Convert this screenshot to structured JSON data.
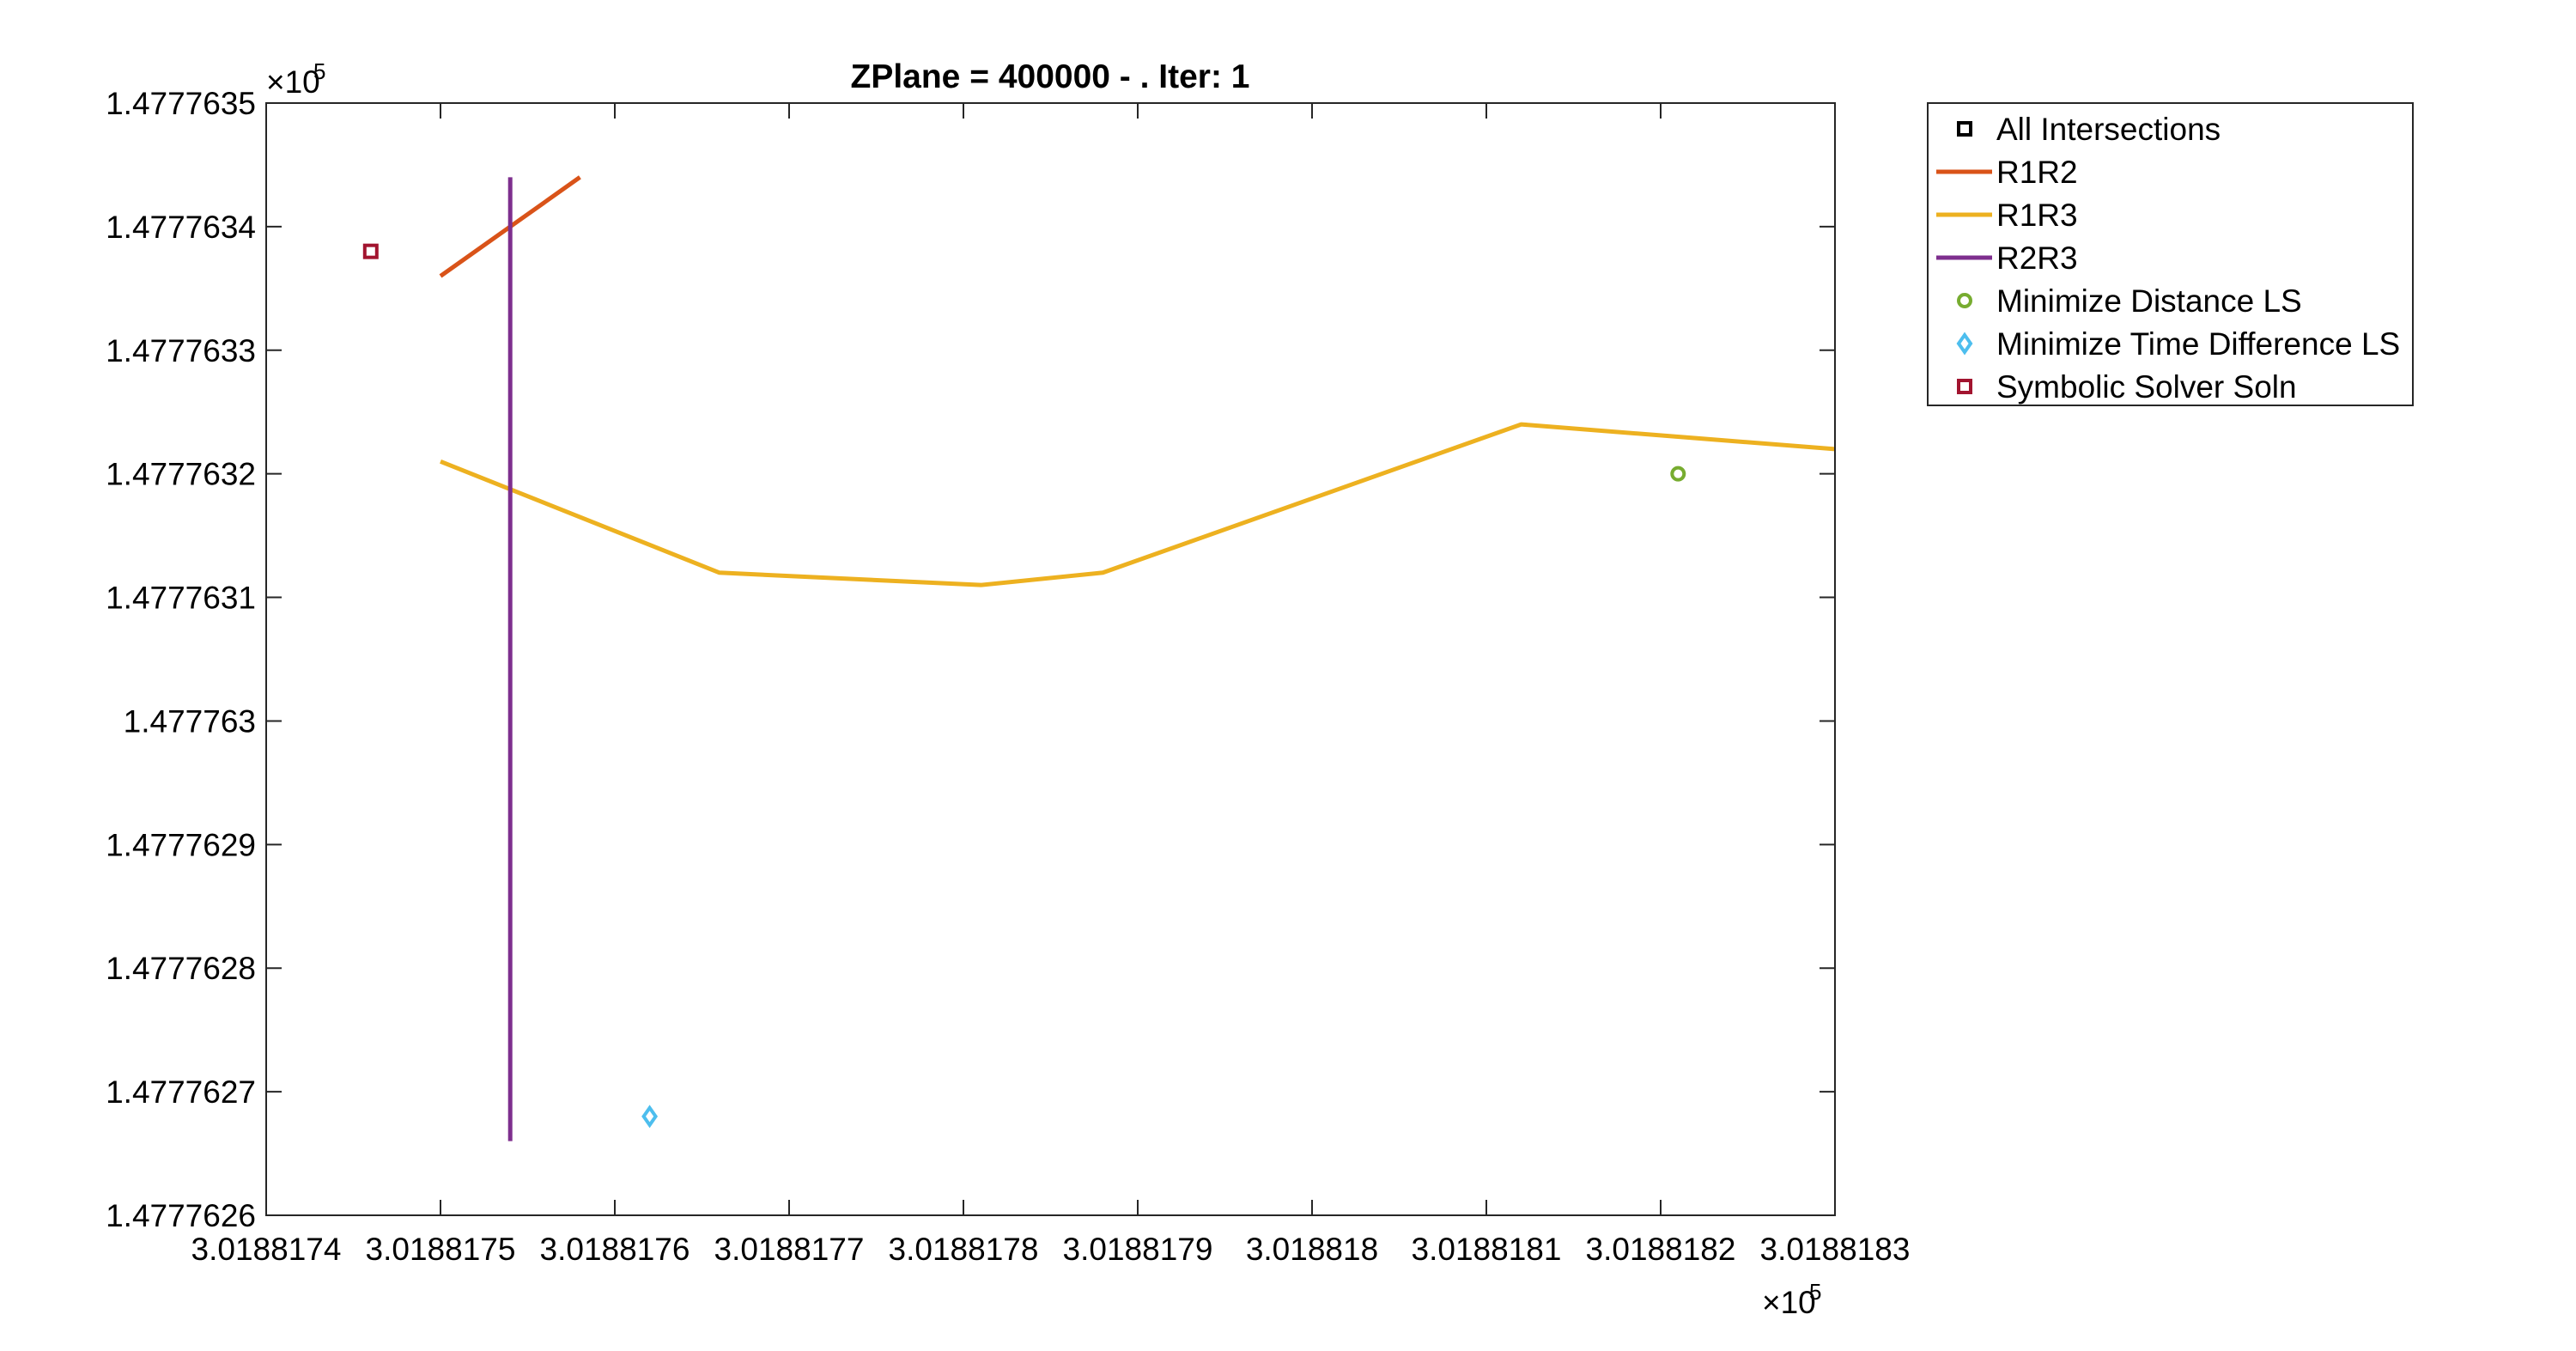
{
  "chart_data": {
    "type": "line",
    "title": "ZPlane = 400000 - . Iter: 1",
    "xlabel": "",
    "ylabel": "",
    "x_exponent_label": "×10",
    "x_exponent_power": "5",
    "y_exponent_label": "×10",
    "y_exponent_power": "5",
    "xlim": [
      3.0188174,
      3.0188183
    ],
    "ylim": [
      1.4777626,
      1.4777635
    ],
    "x_ticks": [
      3.0188174,
      3.0188175,
      3.0188176,
      3.0188177,
      3.0188178,
      3.0188179,
      3.018818,
      3.0188181,
      3.0188182,
      3.0188183
    ],
    "x_tick_labels": [
      "3.0188174",
      "3.0188175",
      "3.0188176",
      "3.0188177",
      "3.0188178",
      "3.0188179",
      "3.018818",
      "3.0188181",
      "3.0188182",
      "3.0188183"
    ],
    "y_ticks": [
      1.4777626,
      1.4777627,
      1.4777628,
      1.4777629,
      1.477763,
      1.4777631,
      1.4777632,
      1.4777633,
      1.4777634,
      1.4777635
    ],
    "y_tick_labels": [
      "1.4777626",
      "1.4777627",
      "1.4777628",
      "1.4777629",
      "1.477763",
      "1.4777631",
      "1.4777632",
      "1.4777633",
      "1.4777634",
      "1.4777635"
    ],
    "grid": false,
    "legend_position": "outside-top-right",
    "series": [
      {
        "name": "All Intersections",
        "kind": "marker",
        "marker": "square",
        "color": "#000000",
        "points": []
      },
      {
        "name": "R1R2",
        "kind": "line",
        "color": "#D95319",
        "points": [
          [
            3.0188175,
            1.47776336
          ],
          [
            3.01881758,
            1.47776344
          ]
        ]
      },
      {
        "name": "R1R3",
        "kind": "line",
        "color": "#EDB120",
        "points": [
          [
            3.0188175,
            1.47776321
          ],
          [
            3.01881766,
            1.47776312
          ],
          [
            3.01881781,
            1.47776311
          ],
          [
            3.01881788,
            1.47776312
          ],
          [
            3.01881812,
            1.47776324
          ],
          [
            3.0188183,
            1.47776322
          ]
        ]
      },
      {
        "name": "R2R3",
        "kind": "line",
        "color": "#7E2F8E",
        "points": [
          [
            3.01881754,
            1.47776344
          ],
          [
            3.01881754,
            1.47776266
          ]
        ]
      },
      {
        "name": "Minimize Distance LS",
        "kind": "marker",
        "marker": "circle",
        "color": "#77AC30",
        "points": [
          [
            3.01881821,
            1.4777632
          ]
        ]
      },
      {
        "name": "Minimize Time Difference LS",
        "kind": "marker",
        "marker": "diamond",
        "color": "#4DBEEE",
        "points": [
          [
            3.01881762,
            1.47776268
          ]
        ]
      },
      {
        "name": "Symbolic Solver Soln",
        "kind": "marker",
        "marker": "square",
        "color": "#A2142F",
        "points": [
          [
            3.01881746,
            1.47776338
          ]
        ]
      }
    ]
  }
}
